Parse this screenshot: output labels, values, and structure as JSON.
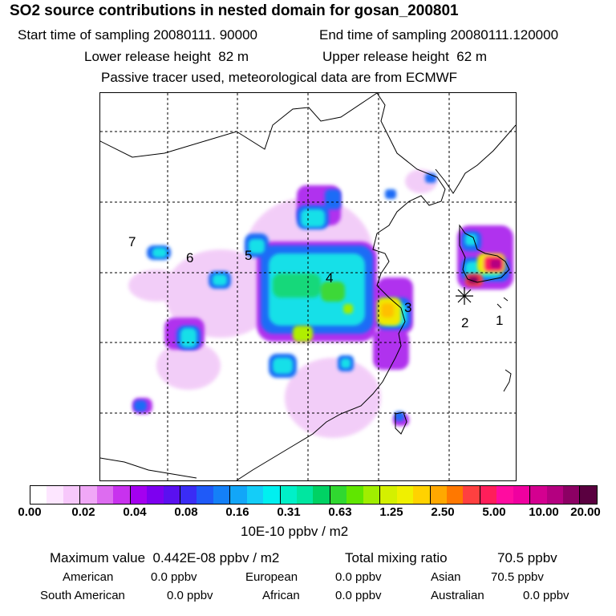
{
  "header": {
    "title": "SO2 source contributions in nested domain for gosan_200801",
    "start_label": "Start time of sampling",
    "start_value": "20080111. 90000",
    "end_label": "End time of sampling",
    "end_value": "20080111.120000",
    "lower_label": "Lower release height",
    "lower_value": "82 m",
    "upper_label": "Upper release height",
    "upper_value": "62 m",
    "tracer_note": "Passive tracer used, meteorological data are from ECMWF"
  },
  "map": {
    "labels": [
      "1",
      "2",
      "3",
      "4",
      "5",
      "6",
      "7"
    ],
    "receptor_marker": "asterisk"
  },
  "colorbar": {
    "colors": [
      "#ffffff",
      "#fde6ff",
      "#f7c8fb",
      "#f0a8f7",
      "#dd6cf0",
      "#c832ee",
      "#a400f0",
      "#7d00f0",
      "#5a10f0",
      "#3a2cf5",
      "#1f5af8",
      "#1480f8",
      "#12a6f8",
      "#14cdf8",
      "#00f0f0",
      "#00f0c8",
      "#00e6a0",
      "#00d264",
      "#30d830",
      "#60e600",
      "#a0ee00",
      "#d4f000",
      "#f0f000",
      "#ffd200",
      "#ffa800",
      "#ff7800",
      "#ff4040",
      "#ff1e5a",
      "#ff0ca0",
      "#f000a0",
      "#d40090",
      "#b40080",
      "#8c0064",
      "#5a0040"
    ],
    "ticks": [
      "0.00",
      "0.02",
      "0.04",
      "0.08",
      "0.16",
      "0.31",
      "0.63",
      "1.25",
      "2.50",
      "5.00",
      "10.00",
      "20.00"
    ],
    "units": "10E-10 ppbv / m2"
  },
  "summary": {
    "max_label": "Maximum value",
    "max_value": "0.442E-08 ppbv / m2",
    "total_label": "Total mixing ratio",
    "total_value": "70.5 ppbv",
    "regions": [
      {
        "name": "American",
        "value": "0.0 ppbv"
      },
      {
        "name": "European",
        "value": "0.0 ppbv"
      },
      {
        "name": "Asian",
        "value": "70.5 ppbv"
      },
      {
        "name": "South American",
        "value": "0.0 ppbv"
      },
      {
        "name": "African",
        "value": "0.0 ppbv"
      },
      {
        "name": "Australian",
        "value": "0.0 ppbv"
      }
    ]
  }
}
